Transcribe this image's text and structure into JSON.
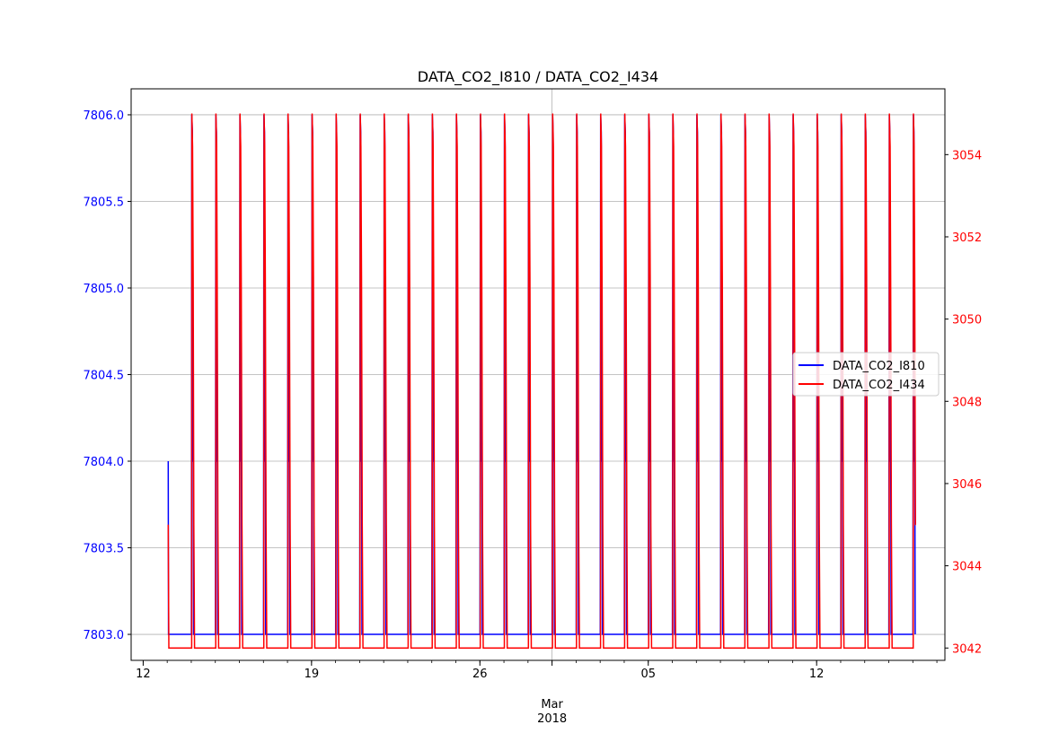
{
  "chart_data": {
    "type": "line",
    "title": "DATA_CO2_I810 / DATA_CO2_I434",
    "xlabel": "",
    "x_range": [
      "2018-02-11T12:00",
      "2018-03-17T08:00"
    ],
    "x_ticks": [
      {
        "date": "2018-02-12",
        "label": "12",
        "major": true
      },
      {
        "date": "2018-02-19",
        "label": "19",
        "major": true
      },
      {
        "date": "2018-02-26",
        "label": "26",
        "major": true
      },
      {
        "date": "2018-03-05",
        "label": "05",
        "major": true
      },
      {
        "date": "2018-03-12",
        "label": "12",
        "major": true
      }
    ],
    "x_month_label": {
      "date": "2018-03-01",
      "label": "Mar",
      "year": "2018"
    },
    "y_left": {
      "label": "",
      "range": [
        7802.85,
        7806.15
      ],
      "ticks": [
        "7803.0",
        "7803.5",
        "7804.0",
        "7804.5",
        "7805.0",
        "7805.5",
        "7806.0"
      ],
      "color": "#0000ff"
    },
    "y_right": {
      "label": "",
      "range": [
        3041.7,
        3055.6
      ],
      "ticks": [
        "3042",
        "3044",
        "3046",
        "3048",
        "3050",
        "3052",
        "3054"
      ],
      "color": "#ff0000"
    },
    "grid": true,
    "legend": {
      "position": "center-right",
      "entries": [
        "DATA_CO2_I810",
        "DATA_CO2_I434"
      ]
    },
    "series": [
      {
        "name": "DATA_CO2_I810",
        "axis": "left",
        "color": "#0000ff",
        "pattern": "daily sawtooth",
        "start": "2018-02-13T01:00",
        "cycle_count": 31,
        "cycle_hours": 24,
        "high": 7806.0,
        "mid": 7804.0,
        "low": 7803.0
      },
      {
        "name": "DATA_CO2_I434",
        "axis": "right",
        "color": "#ff0000",
        "pattern": "daily sawtooth",
        "start": "2018-02-13T01:00",
        "first_value": 3045,
        "cycle_count": 31,
        "cycle_hours": 24,
        "high": 3055,
        "low": 3042,
        "end_value": 3045
      }
    ]
  }
}
